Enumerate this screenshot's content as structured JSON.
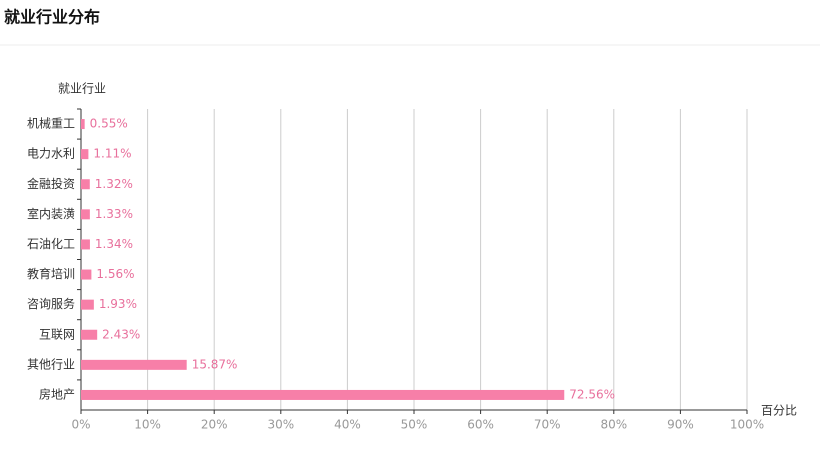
{
  "chart_data": {
    "type": "hbar",
    "title": "就业行业分布",
    "y_label": "就业行业",
    "x_label": "百分比",
    "categories": [
      "机械重工",
      "电力水利",
      "金融投资",
      "室内装潢",
      "石油化工",
      "教育培训",
      "咨询服务",
      "互联网",
      "其他行业",
      "房地产"
    ],
    "values": [
      0.55,
      1.11,
      1.32,
      1.33,
      1.34,
      1.56,
      1.93,
      2.43,
      15.87,
      72.56
    ],
    "value_labels": [
      "0.55%",
      "1.11%",
      "1.32%",
      "1.33%",
      "1.34%",
      "1.56%",
      "1.93%",
      "2.43%",
      "15.87%",
      "72.56%"
    ],
    "color": "#f77fa8",
    "xlim": [
      0,
      100
    ],
    "xticks": [
      {
        "value": 0,
        "label": "0%"
      },
      {
        "value": 10,
        "label": "10%"
      },
      {
        "value": 20,
        "label": "20%"
      },
      {
        "value": 30,
        "label": "30%"
      },
      {
        "value": 40,
        "label": "40%"
      },
      {
        "value": 50,
        "label": "50%"
      },
      {
        "value": 60,
        "label": "60%"
      },
      {
        "value": 70,
        "label": "70%"
      },
      {
        "value": 80,
        "label": "80%"
      },
      {
        "value": 90,
        "label": "90%"
      },
      {
        "value": 100,
        "label": "100%"
      }
    ],
    "grid": true
  }
}
